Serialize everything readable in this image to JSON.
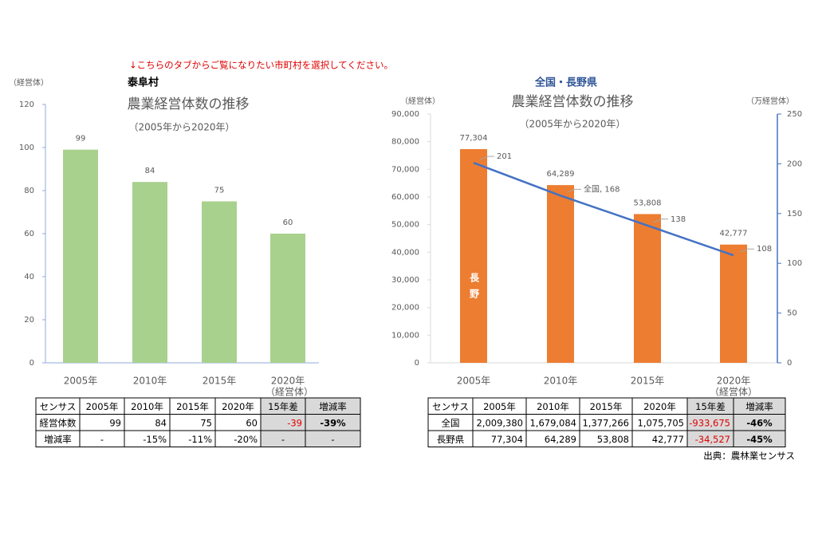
{
  "notice": "↓こちらのタブからご覧になりたい市町村を選択してください。",
  "source": "出典：農林業センサス",
  "chart_data": [
    {
      "type": "bar",
      "heading": "泰阜村",
      "title": "農業経営体数の推移",
      "subtitle": "（2005年から2020年）",
      "y_label": "（経営体）",
      "categories": [
        "2005年",
        "2010年",
        "2015年",
        "2020年"
      ],
      "values": [
        99,
        84,
        75,
        60
      ],
      "color": "#a9d18e",
      "ylim": [
        0,
        120
      ],
      "yticks": [
        0,
        20,
        40,
        60,
        80,
        100,
        120
      ]
    },
    {
      "type": "combo",
      "heading": "全国・長野県",
      "title": "農業経営体数の推移",
      "subtitle": "（2005年から2020年）",
      "y_label": "（経営体）",
      "y2_label": "（万経営体）",
      "categories": [
        "2005年",
        "2010年",
        "2015年",
        "2020年"
      ],
      "series": [
        {
          "name": "長野",
          "kind": "bar",
          "color": "#ed7d31",
          "values": [
            77304,
            64289,
            53808,
            42777
          ],
          "value_labels": [
            "77,304",
            "64,289",
            "53,808",
            "42,777"
          ]
        },
        {
          "name": "全国",
          "kind": "line",
          "axis": "y2",
          "color": "#4472c4",
          "values": [
            201,
            168,
            138,
            108
          ],
          "value_labels": [
            "201",
            "全国, 168",
            "138",
            "108"
          ]
        }
      ],
      "ylim": [
        0,
        90000
      ],
      "yticks": [
        0,
        {
          "value": 10000,
          "label": "10,000"
        },
        {
          "value": 20000,
          "label": "20,000"
        },
        {
          "value": 30000,
          "label": "30,000"
        },
        {
          "value": 40000,
          "label": "40,000"
        },
        {
          "value": 50000,
          "label": "50,000"
        },
        {
          "value": 60000,
          "label": "60,000"
        },
        {
          "value": 70000,
          "label": "70,000"
        },
        {
          "value": 80000,
          "label": "80,000"
        },
        {
          "value": 90000,
          "label": "90,000"
        }
      ],
      "y2lim": [
        0,
        250
      ],
      "y2ticks": [
        0,
        50,
        100,
        150,
        200,
        250
      ]
    }
  ],
  "tables": [
    {
      "unit": "（経営体）",
      "header": [
        "センサス",
        "2005年",
        "2010年",
        "2015年",
        "2020年",
        "15年差",
        "増減率"
      ],
      "rows": [
        [
          "経営体数",
          "99",
          "84",
          "75",
          "60",
          "-39",
          "-39%"
        ],
        [
          "増減率",
          "-",
          "-15%",
          "-11%",
          "-20%",
          "-",
          "-"
        ]
      ]
    },
    {
      "unit": "（経営体）",
      "header": [
        "センサス",
        "2005年",
        "2010年",
        "2015年",
        "2020年",
        "15年差",
        "増減率"
      ],
      "rows": [
        [
          "全国",
          "2,009,380",
          "1,679,084",
          "1,377,266",
          "1,075,705",
          "-933,675",
          "-46%"
        ],
        [
          "長野県",
          "77,304",
          "64,289",
          "53,808",
          "42,777",
          "-34,527",
          "-45%"
        ]
      ]
    }
  ]
}
